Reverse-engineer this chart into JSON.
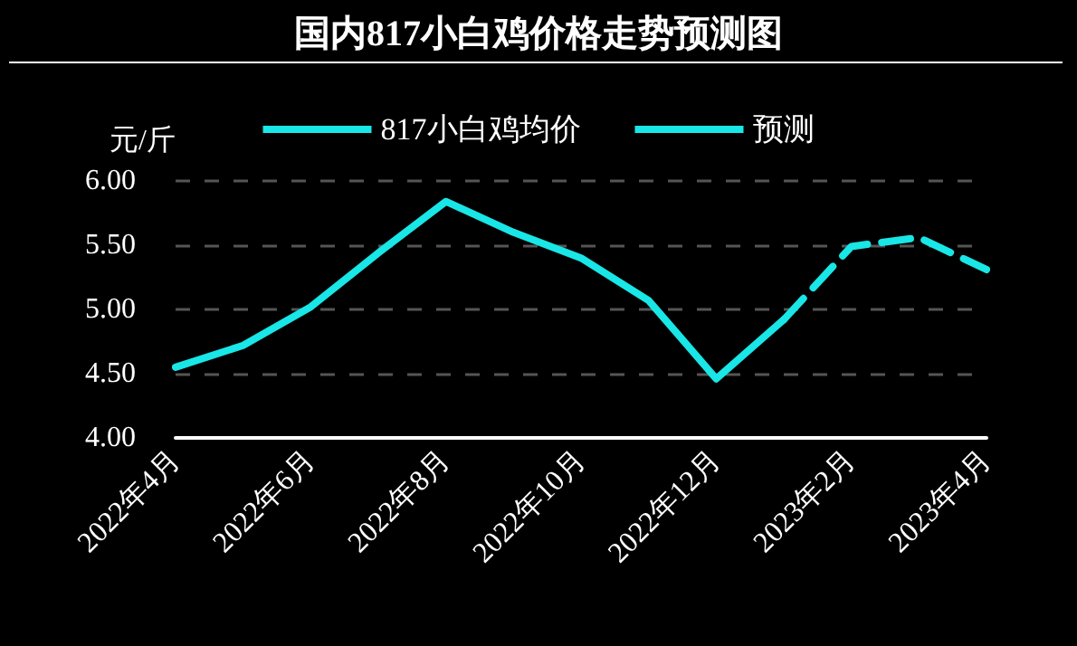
{
  "chart_data": {
    "type": "line",
    "title": "国内817小白鸡价格走势预测图",
    "ylabel": "元/斤",
    "categories": [
      "2022年4月",
      null,
      "2022年6月",
      null,
      "2022年8月",
      null,
      "2022年10月",
      null,
      "2022年12月",
      null,
      "2023年2月",
      null,
      "2023年4月"
    ],
    "series": [
      {
        "name": "817小白鸡均价",
        "color": "#19e6e6",
        "line_style": "solid",
        "values": [
          4.55,
          4.72,
          5.02,
          5.44,
          5.84,
          5.6,
          5.4,
          5.07,
          4.46,
          4.92,
          null,
          null,
          null
        ]
      },
      {
        "name": "预测",
        "color": "#19e6e6",
        "line_style": "dashed",
        "values": [
          null,
          null,
          null,
          null,
          null,
          null,
          null,
          null,
          null,
          4.92,
          5.49,
          5.56,
          5.31
        ]
      }
    ],
    "ylim": [
      4,
      6
    ],
    "yticks": [
      {
        "value": 4,
        "label": "4.00"
      },
      {
        "value": 4.5,
        "label": "4.50"
      },
      {
        "value": 5,
        "label": "5.00"
      },
      {
        "value": 5.5,
        "label": "5.50"
      },
      {
        "value": 6,
        "label": "6.00"
      }
    ],
    "grid": "y",
    "legend": "top",
    "marker": "none"
  }
}
